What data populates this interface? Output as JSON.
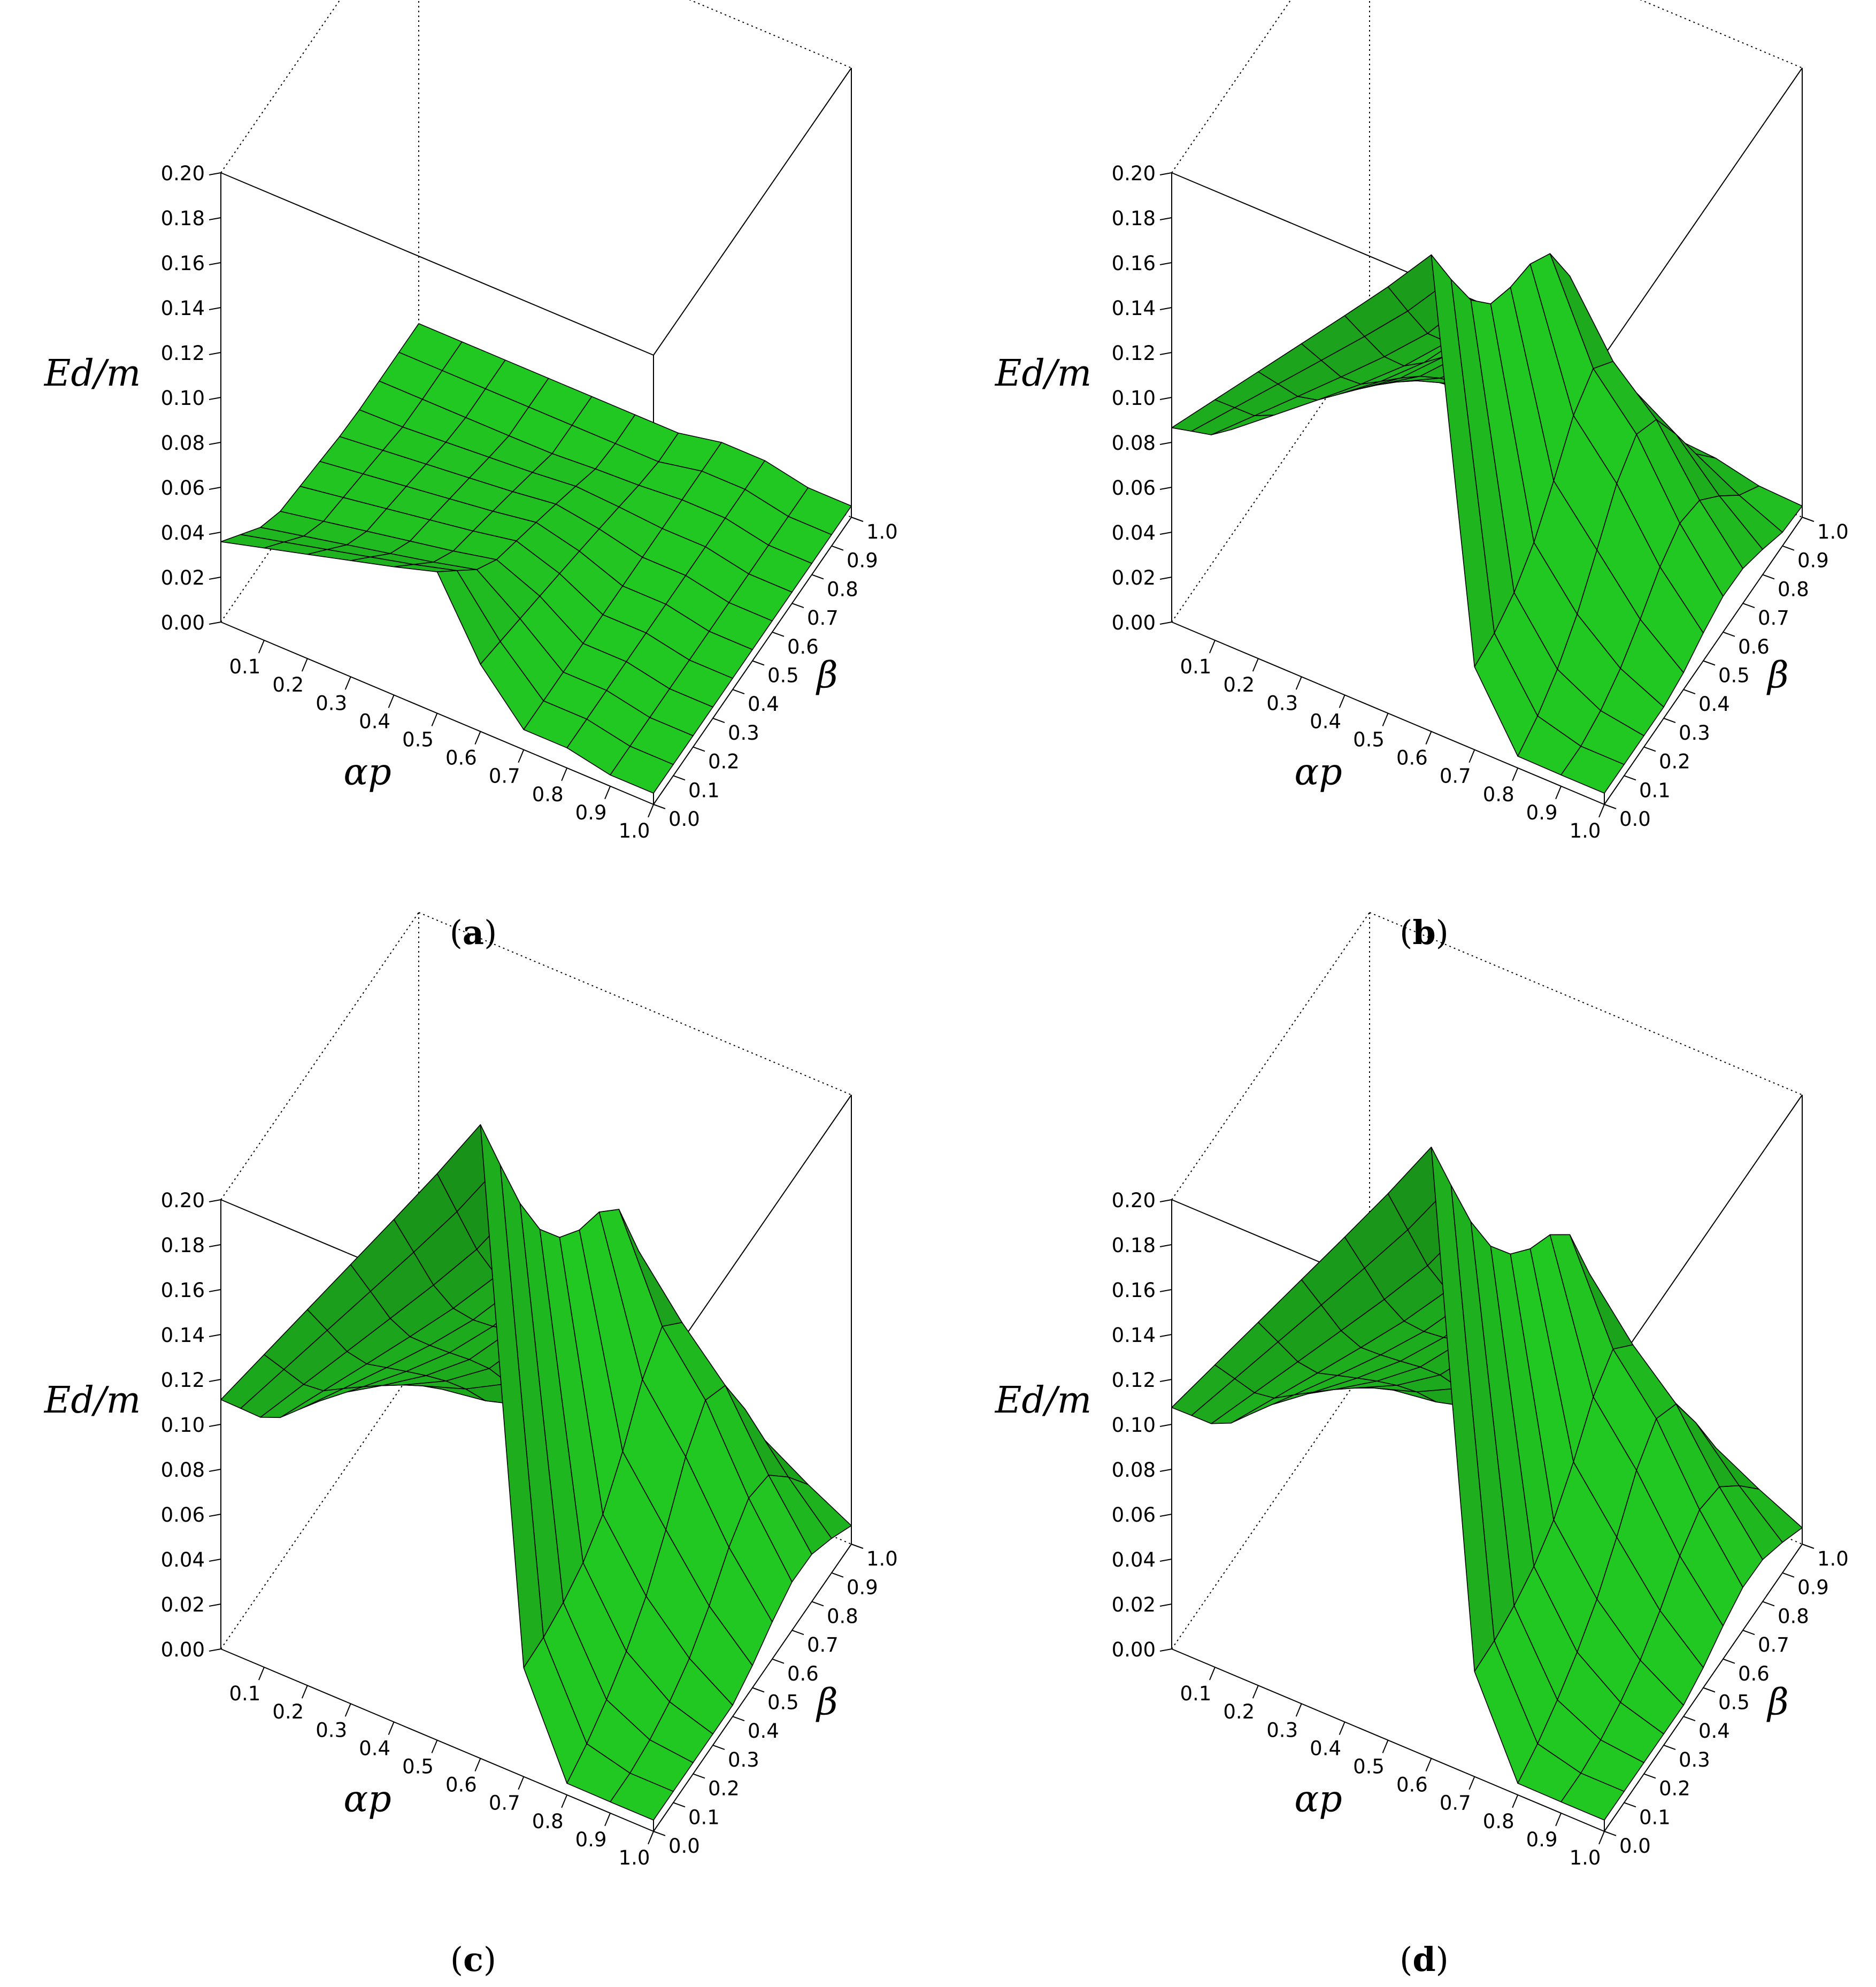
{
  "chart_data": [
    {
      "type": "surface3d",
      "panel_label": "a",
      "xlabel": "αp",
      "ylabel": "β",
      "zlabel": "Ed/m",
      "xlim": [
        0.0,
        1.0
      ],
      "ylim": [
        0.0,
        1.0
      ],
      "zlim": [
        0.0,
        0.2
      ],
      "x_ticks": [
        "0.1",
        "0.2",
        "0.3",
        "0.4",
        "0.5",
        "0.6",
        "0.7",
        "0.8",
        "0.9",
        "1.0"
      ],
      "y_ticks": [
        "0.0",
        "0.1",
        "0.2",
        "0.3",
        "0.4",
        "0.5",
        "0.6",
        "0.7",
        "0.8",
        "0.9",
        "1.0"
      ],
      "z_ticks": [
        "0.00",
        "0.02",
        "0.04",
        "0.06",
        "0.08",
        "0.10",
        "0.12",
        "0.14",
        "0.16",
        "0.18",
        "0.20"
      ],
      "surface_color": "#22c822",
      "shape": {
        "peak": 0.045,
        "ridge_alpha": 0.55,
        "ridge_end_beta": 0.9,
        "hump": 0.0,
        "hump_alpha": 0.65,
        "hump_beta": 0.55,
        "hump_width": 0.16,
        "base": 0.005
      }
    },
    {
      "type": "surface3d",
      "panel_label": "b",
      "xlabel": "αp",
      "ylabel": "β",
      "zlabel": "Ed/m",
      "xlim": [
        0.0,
        1.0
      ],
      "ylim": [
        0.0,
        1.0
      ],
      "zlim": [
        0.0,
        0.2
      ],
      "x_ticks": [
        "0.1",
        "0.2",
        "0.3",
        "0.4",
        "0.5",
        "0.6",
        "0.7",
        "0.8",
        "0.9",
        "1.0"
      ],
      "y_ticks": [
        "0.0",
        "0.1",
        "0.2",
        "0.3",
        "0.4",
        "0.5",
        "0.6",
        "0.7",
        "0.8",
        "0.9",
        "1.0"
      ],
      "z_ticks": [
        "0.00",
        "0.02",
        "0.04",
        "0.06",
        "0.08",
        "0.10",
        "0.12",
        "0.14",
        "0.16",
        "0.18",
        "0.20"
      ],
      "surface_color": "#22c822",
      "shape": {
        "peak": 0.19,
        "ridge_alpha": 0.6,
        "ridge_end_beta": 0.95,
        "hump": 0.06,
        "hump_alpha": 0.7,
        "hump_beta": 0.65,
        "hump_width": 0.18,
        "base": 0.005
      }
    },
    {
      "type": "surface3d",
      "panel_label": "c",
      "xlabel": "αp",
      "ylabel": "β",
      "zlabel": "Ed/m",
      "xlim": [
        0.0,
        1.0
      ],
      "ylim": [
        0.0,
        1.0
      ],
      "zlim": [
        0.0,
        0.2
      ],
      "x_ticks": [
        "0.1",
        "0.2",
        "0.3",
        "0.4",
        "0.5",
        "0.6",
        "0.7",
        "0.8",
        "0.9",
        "1.0"
      ],
      "y_ticks": [
        "0.0",
        "0.1",
        "0.2",
        "0.3",
        "0.4",
        "0.5",
        "0.6",
        "0.7",
        "0.8",
        "0.9",
        "1.0"
      ],
      "z_ticks": [
        "0.00",
        "0.02",
        "0.04",
        "0.06",
        "0.08",
        "0.10",
        "0.12",
        "0.14",
        "0.16",
        "0.18",
        "0.20"
      ],
      "surface_color": "#22c822",
      "shape": {
        "peak": 0.26,
        "ridge_alpha": 0.6,
        "ridge_end_beta": 0.95,
        "hump": 0.085,
        "hump_alpha": 0.7,
        "hump_beta": 0.75,
        "hump_width": 0.18,
        "base": 0.005
      }
    },
    {
      "type": "surface3d",
      "panel_label": "d",
      "xlabel": "αp",
      "ylabel": "β",
      "zlabel": "Ed/m",
      "xlim": [
        0.0,
        1.0
      ],
      "ylim": [
        0.0,
        1.0
      ],
      "zlim": [
        0.0,
        0.2
      ],
      "x_ticks": [
        "0.1",
        "0.2",
        "0.3",
        "0.4",
        "0.5",
        "0.6",
        "0.7",
        "0.8",
        "0.9",
        "1.0"
      ],
      "y_ticks": [
        "0.0",
        "0.1",
        "0.2",
        "0.3",
        "0.4",
        "0.5",
        "0.6",
        "0.7",
        "0.8",
        "0.9",
        "1.0"
      ],
      "z_ticks": [
        "0.00",
        "0.02",
        "0.04",
        "0.06",
        "0.08",
        "0.10",
        "0.12",
        "0.14",
        "0.16",
        "0.18",
        "0.20"
      ],
      "surface_color": "#22c822",
      "shape": {
        "peak": 0.25,
        "ridge_alpha": 0.6,
        "ridge_end_beta": 0.95,
        "hump": 0.075,
        "hump_alpha": 0.7,
        "hump_beta": 0.75,
        "hump_width": 0.18,
        "base": 0.005
      }
    }
  ]
}
